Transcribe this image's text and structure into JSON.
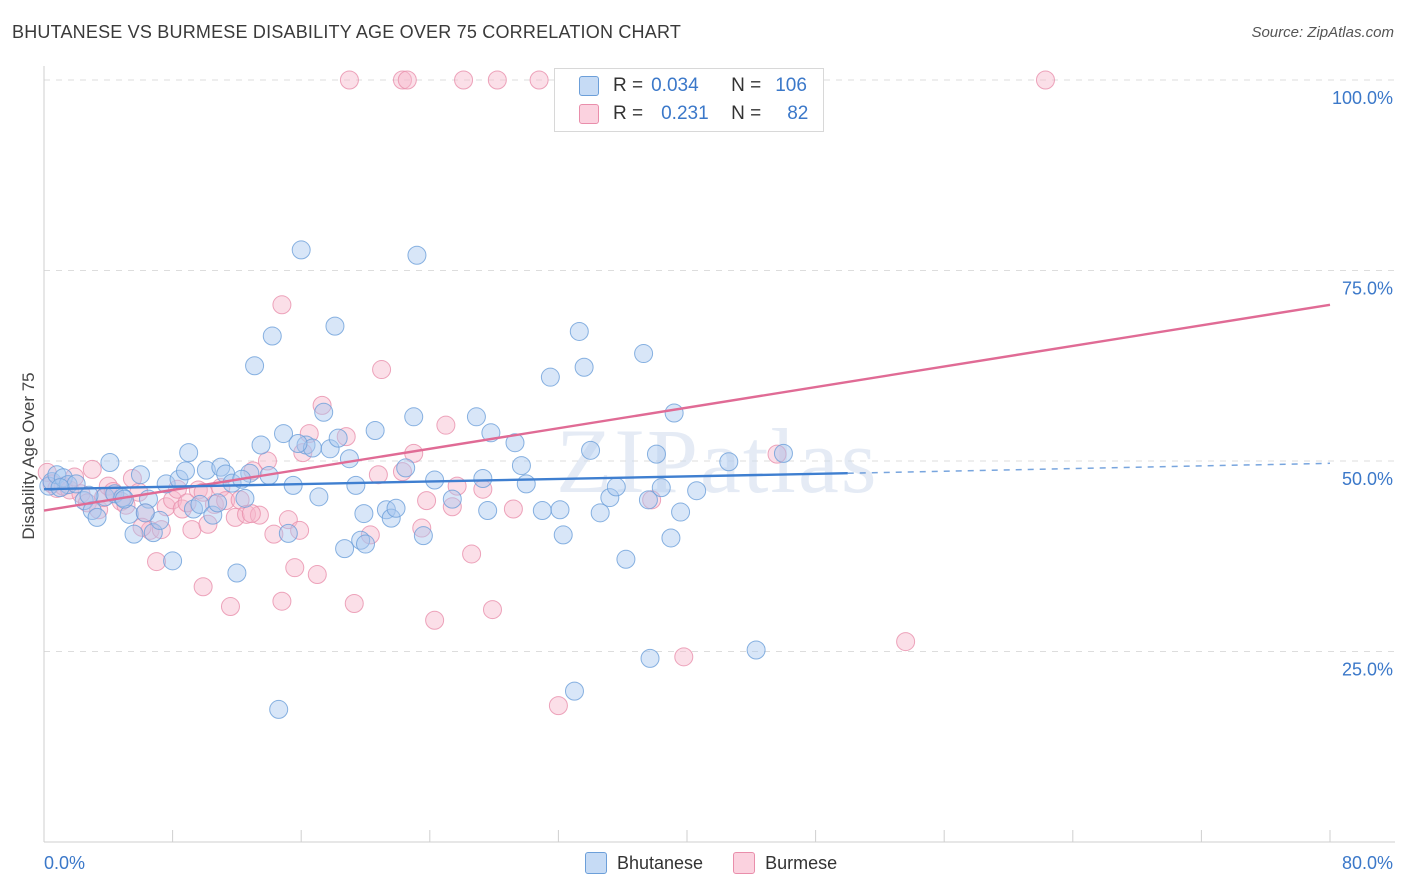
{
  "header": {
    "title": "BHUTANESE VS BURMESE DISABILITY AGE OVER 75 CORRELATION CHART",
    "source": "Source: ZipAtlas.com"
  },
  "stats": {
    "blue": {
      "r_label": "R =",
      "r_value": "0.034",
      "n_label": "N =",
      "n_value": "106"
    },
    "pink": {
      "r_label": "R =",
      "r_value": "0.231",
      "n_label": "N =",
      "n_value": "82"
    }
  },
  "colors": {
    "blue_fill": "#a9c8f0",
    "blue_stroke": "#6c9fd9",
    "blue_line": "#3f7fd0",
    "pink_fill": "#f7b8cc",
    "pink_stroke": "#e98eab",
    "pink_line": "#e06b95",
    "axis_label": "#3b78c9",
    "grid": "#dddddd"
  },
  "chart_data": {
    "type": "scatter",
    "title": "BHUTANESE VS BURMESE DISABILITY AGE OVER 75 CORRELATION CHART",
    "ylabel": "Disability Age Over 75",
    "xlabel": "",
    "xlim": [
      0,
      80
    ],
    "ylim": [
      0,
      100
    ],
    "x_tick_labels": [
      "0.0%",
      "80.0%"
    ],
    "y_tick_labels": [
      "100.0%",
      "75.0%",
      "50.0%",
      "25.0%"
    ],
    "y_ticks": [
      100,
      75,
      50,
      25
    ],
    "watermark": "ZIPatlas",
    "legend_position": "bottom-center",
    "grid": true,
    "series": [
      {
        "name": "Bhutanese",
        "trend": {
          "x": [
            0,
            50
          ],
          "y": [
            46.3,
            48.4
          ],
          "dashed_to": [
            80,
            49.7
          ]
        },
        "points": [
          [
            0.3,
            46.7
          ],
          [
            0.5,
            47.3
          ],
          [
            0.8,
            48.2
          ],
          [
            1.2,
            47.8
          ],
          [
            1.5,
            46.9
          ],
          [
            2.0,
            47.0
          ],
          [
            2.5,
            44.8
          ],
          [
            3.0,
            43.5
          ],
          [
            3.3,
            42.6
          ],
          [
            3.8,
            45.3
          ],
          [
            4.1,
            49.8
          ],
          [
            4.4,
            45.7
          ],
          [
            4.9,
            45.2
          ],
          [
            5.3,
            43.0
          ],
          [
            5.6,
            40.4
          ],
          [
            6.0,
            48.2
          ],
          [
            6.5,
            45.0
          ],
          [
            6.8,
            40.6
          ],
          [
            7.2,
            42.2
          ],
          [
            7.6,
            47.0
          ],
          [
            8.0,
            36.9
          ],
          [
            8.4,
            47.6
          ],
          [
            8.8,
            48.7
          ],
          [
            9.0,
            51.1
          ],
          [
            9.3,
            43.7
          ],
          [
            9.7,
            44.3
          ],
          [
            10.1,
            48.8
          ],
          [
            10.5,
            42.9
          ],
          [
            11.0,
            49.2
          ],
          [
            11.3,
            48.3
          ],
          [
            11.7,
            47.1
          ],
          [
            12.0,
            35.3
          ],
          [
            12.5,
            45.1
          ],
          [
            12.8,
            48.4
          ],
          [
            13.1,
            62.5
          ],
          [
            13.5,
            52.1
          ],
          [
            14.0,
            48.1
          ],
          [
            14.2,
            66.4
          ],
          [
            14.6,
            17.4
          ],
          [
            14.9,
            53.6
          ],
          [
            15.2,
            40.5
          ],
          [
            15.5,
            46.8
          ],
          [
            16.0,
            77.7
          ],
          [
            16.3,
            52.1
          ],
          [
            16.7,
            51.7
          ],
          [
            17.1,
            45.3
          ],
          [
            17.4,
            56.4
          ],
          [
            17.8,
            51.6
          ],
          [
            18.1,
            67.7
          ],
          [
            18.3,
            53.0
          ],
          [
            18.7,
            38.5
          ],
          [
            19.0,
            50.3
          ],
          [
            19.4,
            46.8
          ],
          [
            19.7,
            39.6
          ],
          [
            20.0,
            39.1
          ],
          [
            20.6,
            54.0
          ],
          [
            21.3,
            43.6
          ],
          [
            21.6,
            42.5
          ],
          [
            21.9,
            43.8
          ],
          [
            22.5,
            49.1
          ],
          [
            23.0,
            55.8
          ],
          [
            23.2,
            77.0
          ],
          [
            23.6,
            40.2
          ],
          [
            24.3,
            47.5
          ],
          [
            25.4,
            45.0
          ],
          [
            26.9,
            55.8
          ],
          [
            27.3,
            47.7
          ],
          [
            27.6,
            43.5
          ],
          [
            27.8,
            53.7
          ],
          [
            29.3,
            52.4
          ],
          [
            29.7,
            49.4
          ],
          [
            30.0,
            47.0
          ],
          [
            31.0,
            43.5
          ],
          [
            31.5,
            61.0
          ],
          [
            32.1,
            43.6
          ],
          [
            32.3,
            40.3
          ],
          [
            33.3,
            67.0
          ],
          [
            33.6,
            62.3
          ],
          [
            34.0,
            51.4
          ],
          [
            34.6,
            43.2
          ],
          [
            35.2,
            45.2
          ],
          [
            35.6,
            46.6
          ],
          [
            36.2,
            37.1
          ],
          [
            37.3,
            64.1
          ],
          [
            37.6,
            44.9
          ],
          [
            37.7,
            24.1
          ],
          [
            38.1,
            50.9
          ],
          [
            38.4,
            46.5
          ],
          [
            39.0,
            39.9
          ],
          [
            39.2,
            56.3
          ],
          [
            39.6,
            43.3
          ],
          [
            40.6,
            46.1
          ],
          [
            42.6,
            49.9
          ],
          [
            44.3,
            25.2
          ],
          [
            46.0,
            51.0
          ],
          [
            33.0,
            19.8
          ],
          [
            5.0,
            45.0
          ],
          [
            2.8,
            45.5
          ],
          [
            1.0,
            46.5
          ],
          [
            6.3,
            43.2
          ],
          [
            10.8,
            44.5
          ],
          [
            12.3,
            47.6
          ],
          [
            15.8,
            52.3
          ],
          [
            19.9,
            43.1
          ]
        ]
      },
      {
        "name": "Burmese",
        "trend": {
          "x": [
            0,
            80
          ],
          "y": [
            43.5,
            70.5
          ]
        },
        "points": [
          [
            0.2,
            48.5
          ],
          [
            0.5,
            47.0
          ],
          [
            0.8,
            46.4
          ],
          [
            1.2,
            46.7
          ],
          [
            1.6,
            46.2
          ],
          [
            1.9,
            47.9
          ],
          [
            2.3,
            45.7
          ],
          [
            2.7,
            44.5
          ],
          [
            3.0,
            48.9
          ],
          [
            3.4,
            43.6
          ],
          [
            3.7,
            45.2
          ],
          [
            4.0,
            46.7
          ],
          [
            4.3,
            46.0
          ],
          [
            4.8,
            44.7
          ],
          [
            5.1,
            44.2
          ],
          [
            5.5,
            47.7
          ],
          [
            5.9,
            45.9
          ],
          [
            6.3,
            43.2
          ],
          [
            6.6,
            40.9
          ],
          [
            7.0,
            36.8
          ],
          [
            7.3,
            41.0
          ],
          [
            7.6,
            44.0
          ],
          [
            8.0,
            44.9
          ],
          [
            8.3,
            46.3
          ],
          [
            8.6,
            43.7
          ],
          [
            8.9,
            44.5
          ],
          [
            9.2,
            41.0
          ],
          [
            9.6,
            46.2
          ],
          [
            9.9,
            33.5
          ],
          [
            10.2,
            41.7
          ],
          [
            10.6,
            44.3
          ],
          [
            11.0,
            46.5
          ],
          [
            11.3,
            44.8
          ],
          [
            11.6,
            30.9
          ],
          [
            11.9,
            42.6
          ],
          [
            12.2,
            44.9
          ],
          [
            12.6,
            43.0
          ],
          [
            13.0,
            48.7
          ],
          [
            13.4,
            42.9
          ],
          [
            13.9,
            50.0
          ],
          [
            14.3,
            40.4
          ],
          [
            14.8,
            31.6
          ],
          [
            14.8,
            70.5
          ],
          [
            15.2,
            42.3
          ],
          [
            15.6,
            36.0
          ],
          [
            16.1,
            51.1
          ],
          [
            16.5,
            53.6
          ],
          [
            17.0,
            35.1
          ],
          [
            17.3,
            57.3
          ],
          [
            19.0,
            100.0
          ],
          [
            19.3,
            31.3
          ],
          [
            20.3,
            40.3
          ],
          [
            20.8,
            48.2
          ],
          [
            21.0,
            62.0
          ],
          [
            22.3,
            100.0
          ],
          [
            22.6,
            100.0
          ],
          [
            23.0,
            51.0
          ],
          [
            23.5,
            41.2
          ],
          [
            23.8,
            44.8
          ],
          [
            24.3,
            29.1
          ],
          [
            25.0,
            54.7
          ],
          [
            25.7,
            46.7
          ],
          [
            26.1,
            100.0
          ],
          [
            26.6,
            37.8
          ],
          [
            27.3,
            46.3
          ],
          [
            27.9,
            30.5
          ],
          [
            28.2,
            100.0
          ],
          [
            29.2,
            43.7
          ],
          [
            30.8,
            100.0
          ],
          [
            32.0,
            17.9
          ],
          [
            37.8,
            44.9
          ],
          [
            39.8,
            24.3
          ],
          [
            45.6,
            50.9
          ],
          [
            53.6,
            26.3
          ],
          [
            62.3,
            100.0
          ],
          [
            6.1,
            41.3
          ],
          [
            9.9,
            45.9
          ],
          [
            12.9,
            43.1
          ],
          [
            15.9,
            40.9
          ],
          [
            18.8,
            53.2
          ],
          [
            22.3,
            48.6
          ],
          [
            25.4,
            44.0
          ]
        ]
      }
    ]
  },
  "bottom_legend": {
    "blue_label": "Bhutanese",
    "pink_label": "Burmese"
  }
}
